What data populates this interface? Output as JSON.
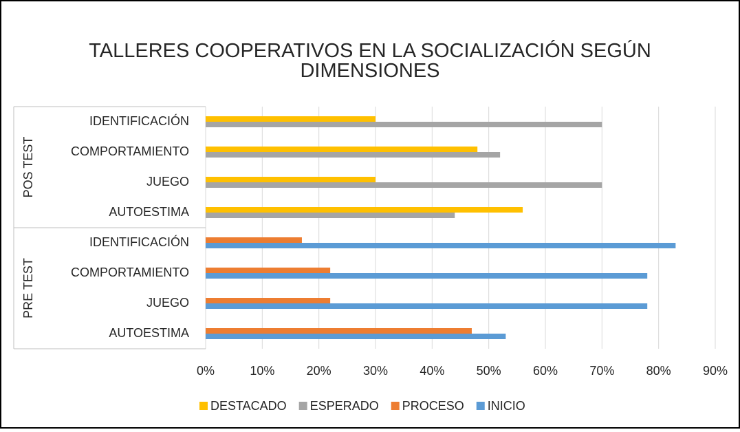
{
  "chart_data": {
    "type": "bar",
    "orientation": "horizontal",
    "title": "TALLERES COOPERATIVOS EN LA SOCIALIZACIÓN SEGÚN DIMENSIONES",
    "category_groups": [
      {
        "name": "POS TEST",
        "categories": [
          "IDENTIFICACIÓN",
          "COMPORTAMIENTO",
          "JUEGO",
          "AUTOESTIMA"
        ]
      },
      {
        "name": "PRE TEST",
        "categories": [
          "IDENTIFICACIÓN",
          "COMPORTAMIENTO",
          "JUEGO",
          "AUTOESTIMA"
        ]
      }
    ],
    "series": [
      {
        "name": "DESTACADO",
        "color": "#FFC000",
        "values": [
          30,
          48,
          30,
          56,
          null,
          null,
          null,
          null
        ]
      },
      {
        "name": "ESPERADO",
        "color": "#A5A5A5",
        "values": [
          70,
          52,
          70,
          44,
          null,
          null,
          null,
          null
        ]
      },
      {
        "name": "PROCESO",
        "color": "#ED7D31",
        "values": [
          null,
          null,
          null,
          null,
          17,
          22,
          22,
          47
        ]
      },
      {
        "name": "INICIO",
        "color": "#5B9BD5",
        "values": [
          null,
          null,
          null,
          null,
          83,
          78,
          78,
          53
        ]
      }
    ],
    "xlim": [
      0,
      90
    ],
    "xticks": [
      {
        "value": 0,
        "label": "0%"
      },
      {
        "value": 10,
        "label": "10%"
      },
      {
        "value": 20,
        "label": "20%"
      },
      {
        "value": 30,
        "label": "30%"
      },
      {
        "value": 40,
        "label": "40%"
      },
      {
        "value": 50,
        "label": "50%"
      },
      {
        "value": 60,
        "label": "60%"
      },
      {
        "value": 70,
        "label": "70%"
      },
      {
        "value": 80,
        "label": "80%"
      },
      {
        "value": 90,
        "label": "90%"
      }
    ],
    "grid": true,
    "legend": "bottom"
  }
}
